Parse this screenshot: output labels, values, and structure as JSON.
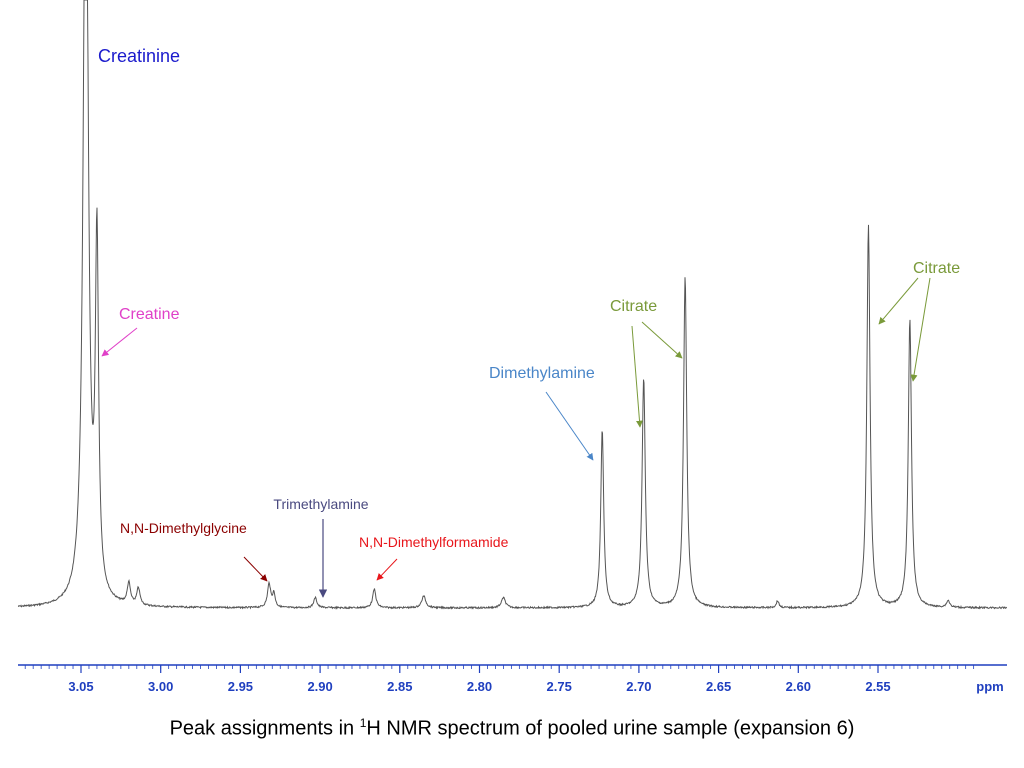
{
  "chart_data": {
    "type": "line",
    "spectrum": "1H NMR",
    "x_unit_label": "ppm",
    "xlim": [
      3.09,
      2.49
    ],
    "x_reversed": true,
    "ticks": [
      "3.05",
      "3.00",
      "2.95",
      "2.90",
      "2.85",
      "2.80",
      "2.75",
      "2.70",
      "2.65",
      "2.60",
      "2.55"
    ],
    "tick_values": [
      3.05,
      3.0,
      2.95,
      2.9,
      2.85,
      2.8,
      2.75,
      2.7,
      2.65,
      2.6,
      2.55
    ],
    "y_scale": "relative intensity (unlabeled)",
    "peaks": [
      {
        "ppm": 3.047,
        "height": 1.0,
        "width": 0.0018,
        "clipped": true
      },
      {
        "ppm": 3.04,
        "height": 0.41,
        "width": 0.0012
      },
      {
        "ppm": 3.02,
        "height": 0.025,
        "width": 0.0012
      },
      {
        "ppm": 3.014,
        "height": 0.02,
        "width": 0.0012
      },
      {
        "ppm": 2.932,
        "height": 0.028,
        "width": 0.0012
      },
      {
        "ppm": 2.929,
        "height": 0.016,
        "width": 0.001
      },
      {
        "ppm": 2.903,
        "height": 0.012,
        "width": 0.0012
      },
      {
        "ppm": 2.866,
        "height": 0.022,
        "width": 0.0012
      },
      {
        "ppm": 2.835,
        "height": 0.014,
        "width": 0.0015
      },
      {
        "ppm": 2.785,
        "height": 0.012,
        "width": 0.0015
      },
      {
        "ppm": 2.723,
        "height": 0.21,
        "width": 0.0011
      },
      {
        "ppm": 2.697,
        "height": 0.27,
        "width": 0.0012
      },
      {
        "ppm": 2.671,
        "height": 0.39,
        "width": 0.0012
      },
      {
        "ppm": 2.613,
        "height": 0.008,
        "width": 0.001
      },
      {
        "ppm": 2.556,
        "height": 0.45,
        "width": 0.0012
      },
      {
        "ppm": 2.53,
        "height": 0.34,
        "width": 0.0012
      },
      {
        "ppm": 2.506,
        "height": 0.008,
        "width": 0.0012
      }
    ],
    "annotations": [
      {
        "label": "Creatinine",
        "color": "#1a1acc",
        "target_ppm": 3.047
      },
      {
        "label": "Creatine",
        "color": "#e040c8",
        "target_ppm": 3.04
      },
      {
        "label": "N,N-Dimethylglycine",
        "color": "#8b0000",
        "target_ppm": 2.932
      },
      {
        "label": "Trimethylamine",
        "color": "#4a4a80",
        "target_ppm": 2.897
      },
      {
        "label": "N,N-Dimethylformamide",
        "color": "#e8161b",
        "target_ppm": 2.866
      },
      {
        "label": "Dimethylamine",
        "color": "#4a86c8",
        "target_ppm": 2.723
      },
      {
        "label": "Citrate",
        "color": "#7a9a3a",
        "target_ppm": [
          2.697,
          2.671
        ]
      },
      {
        "label": "Citrate",
        "color": "#7a9a3a",
        "target_ppm": [
          2.556,
          2.53
        ]
      }
    ],
    "caption": {
      "prefix": "Peak assignments in ",
      "superscript": "1",
      "suffix": "H NMR spectrum of pooled urine sample (expansion 6)"
    }
  }
}
